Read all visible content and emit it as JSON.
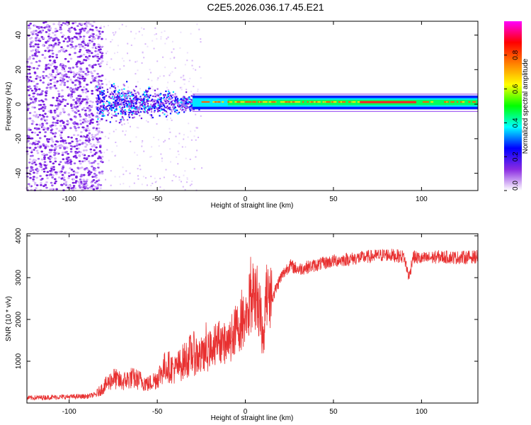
{
  "title": "C2E5.2026.036.17.45.E21",
  "colors": {
    "trace": "#e83030",
    "axis": "#000000",
    "background": "#ffffff",
    "spectral_band": "#00ffb0",
    "spectral_core": "#ff2020",
    "spectral_noise": "#8a2be2"
  },
  "chart_data": [
    {
      "type": "heatmap",
      "title": "",
      "xlabel": "Height of straight line (km)",
      "ylabel": "Frequency (Hz)",
      "xlim": [
        -124,
        132
      ],
      "ylim": [
        -50,
        48
      ],
      "xticks": [
        -100,
        -50,
        0,
        50,
        100
      ],
      "yticks": [
        -40,
        -20,
        0,
        20,
        40
      ],
      "colorbar": {
        "label": "Normalized spectral amplitude",
        "range": [
          0.0,
          1.0
        ],
        "ticks": [
          "0.0",
          "0.2",
          "0.4",
          "0.6",
          "0.8"
        ],
        "colormap": [
          "#ffffff",
          "#8a2be2",
          "#0000ff",
          "#00ffff",
          "#00ff00",
          "#ffff00",
          "#ff8000",
          "#ff0000",
          "#ff00ff"
        ]
      },
      "features": {
        "noise_region_end_km": -85,
        "band_center_hz": 1,
        "band_halfwidth_hz": 3,
        "strong_segment_km": [
          65,
          97
        ]
      }
    },
    {
      "type": "line",
      "title": "",
      "xlabel": "Height of straight line (km)",
      "ylabel": "SNR (10 * v/v)",
      "xlim": [
        -124,
        132
      ],
      "ylim": [
        0,
        4050
      ],
      "xticks": [
        -100,
        -50,
        0,
        50,
        100
      ],
      "yticks": [
        1000,
        2000,
        3000,
        4000
      ],
      "series": [
        {
          "name": "SNR",
          "x": [
            -124,
            -110,
            -100,
            -90,
            -85,
            -80,
            -75,
            -70,
            -65,
            -60,
            -55,
            -50,
            -45,
            -40,
            -35,
            -30,
            -25,
            -20,
            -15,
            -10,
            -5,
            0,
            2,
            5,
            8,
            10,
            12,
            15,
            20,
            25,
            30,
            40,
            50,
            60,
            70,
            80,
            90,
            93,
            95,
            100,
            110,
            120,
            132
          ],
          "values": [
            120,
            140,
            150,
            160,
            200,
            400,
            600,
            500,
            600,
            550,
            450,
            600,
            900,
            800,
            1000,
            1200,
            1100,
            1300,
            1500,
            1400,
            1800,
            2000,
            2300,
            2600,
            2400,
            1500,
            2800,
            2500,
            3000,
            3300,
            3200,
            3300,
            3400,
            3450,
            3500,
            3550,
            3500,
            3000,
            3500,
            3450,
            3500,
            3480,
            3500
          ]
        }
      ]
    }
  ]
}
